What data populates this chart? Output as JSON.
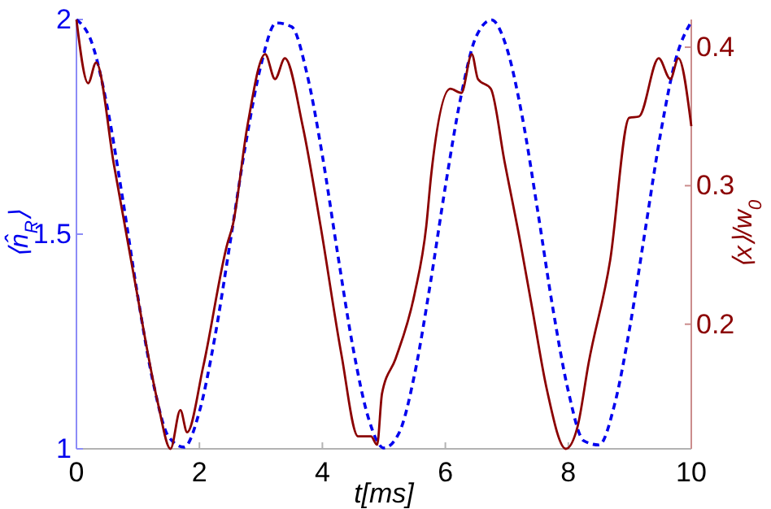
{
  "chart_data": {
    "type": "line",
    "xlabel": "t[ms]",
    "ylabel": "⟨n̂$_{R}$⟩",
    "y2label": "⟨x⟩/w$_{0}$",
    "xlim": [
      0,
      10
    ],
    "xticks": [
      0,
      2,
      4,
      6,
      8,
      10
    ],
    "ylim": [
      1,
      2
    ],
    "yticks": [
      1,
      1.5,
      2
    ],
    "y2lim": [
      0.11,
      0.42
    ],
    "y2ticks": [
      0.2,
      0.3,
      0.4
    ],
    "series": [
      {
        "color": "#0000ee",
        "line_style": "dashed",
        "x": [
          0,
          0.25,
          0.5,
          0.75,
          1,
          1.25,
          1.5,
          1.75,
          2,
          2.25,
          2.5,
          2.75,
          3,
          3.25,
          3.5,
          3.75,
          4,
          4.25,
          4.5,
          4.75,
          5,
          5.25,
          5.5,
          5.75,
          6,
          6.25,
          6.5,
          6.75,
          7,
          7.25,
          7.5,
          7.75,
          8,
          8.25,
          8.5,
          8.75,
          9,
          9.25,
          9.5,
          9.75,
          10
        ],
        "values": [
          2,
          1.946,
          1.797,
          1.584,
          1.353,
          1.153,
          1.028,
          1.004,
          1.087,
          1.259,
          1.481,
          1.708,
          1.893,
          1.992,
          1.983,
          1.873,
          1.683,
          1.453,
          1.234,
          1.071,
          1.002,
          1.038,
          1.174,
          1.38,
          1.611,
          1.818,
          1.96,
          1.999,
          1.933,
          1.774,
          1.556,
          1.326,
          1.134,
          1.019,
          1.009,
          1.102,
          1.283,
          1.509,
          1.734,
          1.909,
          1.995
        ]
      },
      {
        "color": "#8b0000",
        "line_style": "solid",
        "axis": "y2",
        "x": [
          0,
          0.19,
          0.32,
          0.61,
          0.95,
          1.32,
          1.53,
          1.69,
          1.8,
          2.06,
          2.46,
          2.54,
          2.78,
          3.07,
          3.23,
          3.39,
          3.68,
          3.97,
          4.31,
          4.58,
          4.79,
          4.89,
          4.97,
          5.19,
          5.5,
          5.69,
          5.77,
          6.08,
          6.26,
          6.43,
          6.53,
          6.74,
          6.96,
          7.22,
          7.41,
          7.65,
          7.96,
          8.15,
          8.33,
          8.68,
          8.99,
          9.15,
          9.47,
          9.66,
          9.79,
          10
        ],
        "values": [
          0.42,
          0.374,
          0.389,
          0.315,
          0.231,
          0.144,
          0.11,
          0.138,
          0.122,
          0.169,
          0.259,
          0.271,
          0.343,
          0.395,
          0.377,
          0.392,
          0.343,
          0.271,
          0.178,
          0.119,
          0.119,
          0.113,
          0.15,
          0.175,
          0.222,
          0.271,
          0.308,
          0.37,
          0.367,
          0.395,
          0.377,
          0.37,
          0.318,
          0.259,
          0.212,
          0.153,
          0.11,
          0.126,
          0.172,
          0.246,
          0.349,
          0.35,
          0.392,
          0.377,
          0.392,
          0.343
        ]
      }
    ]
  }
}
